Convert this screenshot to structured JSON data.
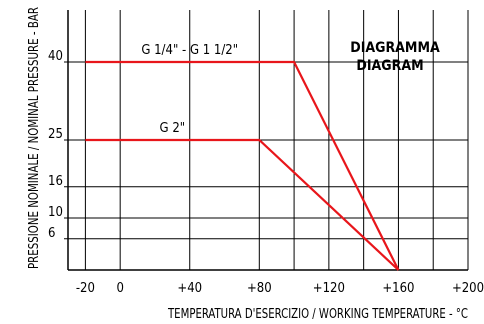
{
  "chart_data": {
    "type": "line",
    "title": "DIAGRAMMA",
    "subtitle": "DIAGRAM",
    "xlabel": "TEMPERATURA D'ESERCIZIO / WORKING TEMPERATURE - °C",
    "ylabel": "PRESSIONE NOMINALE / NOMINAL PRESSURE - BAR",
    "xlim": [
      -30,
      200
    ],
    "ylim": [
      0,
      50
    ],
    "x_ticks": [
      -20,
      0,
      40,
      80,
      120,
      160,
      200
    ],
    "x_tick_labels": [
      "-20",
      "0",
      "+40",
      "+80",
      "+120",
      "+160",
      "+200"
    ],
    "x_grid": [
      -20,
      0,
      40,
      80,
      100,
      120,
      140,
      160,
      180,
      200
    ],
    "y_ticks": [
      6,
      10,
      16,
      25,
      40
    ],
    "y_tick_labels": [
      "6",
      "10",
      "16",
      "25",
      "40"
    ],
    "grid": true,
    "series": [
      {
        "name": "G 1/4\" - G 1 1/2\"",
        "color": "#e8161b",
        "x": [
          -20,
          100,
          160
        ],
        "y": [
          40,
          40,
          0
        ]
      },
      {
        "name": "G 2\"",
        "color": "#e8161b",
        "x": [
          -20,
          80,
          160
        ],
        "y": [
          25,
          25,
          0
        ]
      }
    ]
  }
}
